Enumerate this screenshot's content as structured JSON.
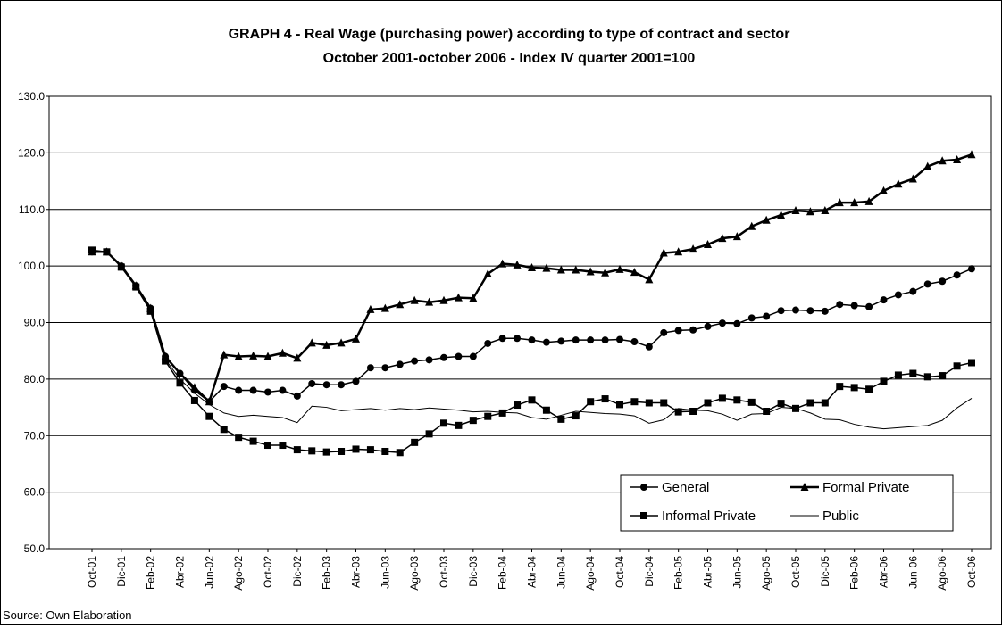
{
  "chart_data": {
    "type": "line",
    "title": "GRAPH 4 - Real Wage (purchasing power) according to type of contract and sector",
    "subtitle": "October 2001-october 2006  -  Index IV quarter 2001=100",
    "source": "Source: Own Elaboration",
    "categories": [
      "Oct-01",
      null,
      "Dic-01",
      null,
      "Feb-02",
      null,
      "Abr-02",
      null,
      "Jun-02",
      null,
      "Ago-02",
      null,
      "Oct-02",
      null,
      "Dic-02",
      null,
      "Feb-03",
      null,
      "Abr-03",
      null,
      "Jun-03",
      null,
      "Ago-03",
      null,
      "Oct-03",
      null,
      "Dic-03",
      null,
      "Feb-04",
      null,
      "Abr-04",
      null,
      "Jun-04",
      null,
      "Ago-04",
      null,
      "Oct-04",
      null,
      "Dic-04",
      null,
      "Feb-05",
      null,
      "Abr-05",
      null,
      "Jun-05",
      null,
      "Ago-05",
      null,
      "Oct-05",
      null,
      "Dic-05",
      null,
      "Feb-06",
      null,
      "Abr-06",
      null,
      "Jun-06",
      null,
      "Ago-06",
      null,
      "Oct-06"
    ],
    "series": [
      {
        "name": "General",
        "color": "#000000",
        "marker": "circle",
        "width": 1.5,
        "values": [
          102.5,
          102.5,
          100,
          96.5,
          92.5,
          84,
          81,
          78,
          76,
          78.7,
          78,
          78,
          77.7,
          78,
          77,
          79.2,
          79,
          79,
          79.6,
          82,
          82,
          82.6,
          83.2,
          83.4,
          83.8,
          84,
          84,
          86.3,
          87.2,
          87.2,
          86.9,
          86.5,
          86.7,
          86.9,
          86.9,
          86.9,
          87,
          86.6,
          85.7,
          88.2,
          88.6,
          88.7,
          89.3,
          89.9,
          89.8,
          90.8,
          91.1,
          92.1,
          92.2,
          92.1,
          92,
          93.2,
          93,
          92.8,
          94,
          94.9,
          95.5,
          96.8,
          97.3,
          98.4,
          99.5
        ]
      },
      {
        "name": "Formal Private",
        "color": "#000000",
        "marker": "triangle",
        "width": 2.5,
        "values": [
          102.5,
          102.5,
          100,
          96.5,
          92.5,
          84,
          81,
          78.5,
          76,
          84.3,
          84,
          84.1,
          84,
          84.6,
          83.7,
          86.4,
          86,
          86.4,
          87.1,
          92.3,
          92.5,
          93.2,
          93.9,
          93.6,
          93.9,
          94.4,
          94.3,
          98.6,
          100.4,
          100.2,
          99.7,
          99.6,
          99.3,
          99.3,
          99,
          98.8,
          99.4,
          98.9,
          97.6,
          102.3,
          102.5,
          103,
          103.8,
          104.9,
          105.2,
          107,
          108.1,
          109,
          109.8,
          109.6,
          109.8,
          111.2,
          111.2,
          111.4,
          113.3,
          114.5,
          115.4,
          117.6,
          118.6,
          118.8,
          119.7
        ]
      },
      {
        "name": "Informal Private",
        "color": "#000000",
        "marker": "square",
        "width": 1.5,
        "values": [
          102.8,
          102.5,
          99.8,
          96.3,
          92,
          83.2,
          79.3,
          76.2,
          73.4,
          71.1,
          69.7,
          69,
          68.3,
          68.3,
          67.5,
          67.3,
          67.1,
          67.2,
          67.6,
          67.5,
          67.2,
          67,
          68.8,
          70.3,
          72.2,
          71.8,
          72.7,
          73.4,
          74,
          75.4,
          76.3,
          74.5,
          72.9,
          73.5,
          76,
          76.5,
          75.5,
          76,
          75.8,
          75.8,
          74.2,
          74.3,
          75.8,
          76.6,
          76.3,
          75.9,
          74.3,
          75.7,
          74.8,
          75.8,
          75.8,
          78.7,
          78.5,
          78.2,
          79.6,
          80.7,
          81,
          80.4,
          80.6,
          82.3,
          82.9
        ]
      },
      {
        "name": "Public",
        "color": "#000000",
        "marker": "none",
        "width": 1,
        "values": [
          102.5,
          102.5,
          100,
          96.5,
          92.5,
          83.5,
          80,
          77.5,
          75.5,
          74,
          73.4,
          73.6,
          73.4,
          73.2,
          72.3,
          75.2,
          75,
          74.4,
          74.6,
          74.8,
          74.5,
          74.8,
          74.6,
          74.9,
          74.7,
          74.5,
          74.2,
          74.3,
          74.1,
          74,
          73.2,
          72.9,
          73.6,
          74.3,
          74.1,
          73.9,
          73.8,
          73.5,
          72.2,
          72.8,
          74.8,
          74.5,
          74.4,
          73.8,
          72.7,
          73.8,
          73.9,
          75,
          74.8,
          74,
          72.9,
          72.8,
          72,
          71.5,
          71.2,
          71.4,
          71.6,
          71.8,
          72.7,
          74.9,
          76.6
        ]
      }
    ],
    "ylim": [
      50,
      130
    ],
    "yticks": [
      {
        "value": 50,
        "label": "50.0"
      },
      {
        "value": 60,
        "label": "60.0"
      },
      {
        "value": 70,
        "label": "70.0"
      },
      {
        "value": 80,
        "label": "80.0"
      },
      {
        "value": 90,
        "label": "90.0"
      },
      {
        "value": 100,
        "label": "100.0"
      },
      {
        "value": 110,
        "label": "110.0"
      },
      {
        "value": 120,
        "label": "120.0"
      },
      {
        "value": 130,
        "label": "130.0"
      }
    ],
    "grid": true,
    "legend": "lower right"
  }
}
